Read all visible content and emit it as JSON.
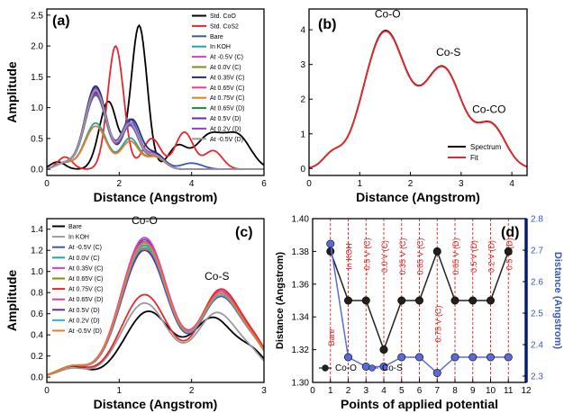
{
  "colors": {
    "black": "#000000",
    "red": "#e8262b",
    "blue": "#3a57b5",
    "teal": "#18a8a8",
    "magenta": "#d63fc8",
    "olive": "#8a8a10",
    "navy": "#1f2a8a",
    "pink": "#ee3a86",
    "orange": "#f07a20",
    "green": "#1a8f2a",
    "dkmagenta": "#6a2aa8",
    "purple": "#9a3ad0",
    "gray": "#9a9a9a",
    "cyan": "#27b6d6",
    "ptBlack": "#202020",
    "ptBlue": "#5a6ad8"
  },
  "chart_data": [
    {
      "id": "a",
      "panel_label": "(a)",
      "type": "line",
      "xlabel": "Distance (Angstrom)",
      "ylabel": "Amplitude",
      "xlim": [
        0,
        6
      ],
      "ylim": [
        -0.1,
        2.6
      ],
      "xticks": [
        0,
        2,
        4,
        6
      ],
      "yticks": [
        0.0,
        0.5,
        1.0,
        1.5,
        2.0,
        2.5
      ],
      "ytick_labels": [
        "0.0",
        "0.5",
        "1.0",
        "1.5",
        "2.0",
        "2.5"
      ],
      "legend_position": "top-right",
      "series": [
        {
          "name": "Std. CoO",
          "color": "#000000",
          "peaks": [
            [
              0.3,
              0.12,
              0.2
            ],
            [
              1.7,
              1.1,
              0.25
            ],
            [
              2.55,
              2.33,
              0.22
            ],
            [
              3.6,
              0.35,
              0.25
            ],
            [
              4.5,
              0.55,
              0.4
            ],
            [
              5.3,
              0.5,
              0.35
            ]
          ]
        },
        {
          "name": "Std. CoS2",
          "color": "#e8262b",
          "peaks": [
            [
              0.5,
              0.2,
              0.2
            ],
            [
              1.9,
              2.0,
              0.22
            ],
            [
              2.9,
              0.5,
              0.25
            ],
            [
              3.8,
              0.6,
              0.25
            ],
            [
              4.6,
              0.3,
              0.25
            ]
          ]
        },
        {
          "name": "Bare",
          "color": "#3a57b5",
          "peaks": [
            [
              0.5,
              0.1,
              0.25
            ],
            [
              1.35,
              1.32,
              0.3
            ],
            [
              2.3,
              0.8,
              0.25
            ],
            [
              3.0,
              0.25,
              0.25
            ],
            [
              4.0,
              0.1,
              0.3
            ]
          ]
        },
        {
          "name": "In KOH",
          "color": "#18a8a8",
          "peaks": [
            [
              0.5,
              0.1,
              0.25
            ],
            [
              1.35,
              0.75,
              0.3
            ],
            [
              2.3,
              0.5,
              0.25
            ],
            [
              3.0,
              0.2,
              0.25
            ]
          ]
        },
        {
          "name": "At -0.5V (C)",
          "color": "#d63fc8",
          "peaks": [
            [
              0.5,
              0.1,
              0.25
            ],
            [
              1.35,
              1.3,
              0.3
            ],
            [
              2.3,
              0.75,
              0.25
            ],
            [
              3.0,
              0.25,
              0.25
            ]
          ]
        },
        {
          "name": "At 0.0V (C)",
          "color": "#8a8a10",
          "peaks": [
            [
              0.5,
              0.1,
              0.25
            ],
            [
              1.35,
              1.25,
              0.3
            ],
            [
              2.3,
              0.7,
              0.25
            ],
            [
              3.0,
              0.2,
              0.25
            ]
          ]
        },
        {
          "name": "At 0.35V (C)",
          "color": "#1f2a8a",
          "peaks": [
            [
              0.5,
              0.1,
              0.25
            ],
            [
              1.35,
              1.35,
              0.3
            ],
            [
              2.35,
              0.8,
              0.25
            ],
            [
              3.0,
              0.25,
              0.25
            ]
          ]
        },
        {
          "name": "At 0.65V (C)",
          "color": "#ee3a86",
          "peaks": [
            [
              0.5,
              0.1,
              0.25
            ],
            [
              1.35,
              1.28,
              0.3
            ],
            [
              2.3,
              0.72,
              0.25
            ],
            [
              3.0,
              0.22,
              0.25
            ]
          ]
        },
        {
          "name": "At 0.75V (C)",
          "color": "#f07a20",
          "peaks": [
            [
              0.5,
              0.1,
              0.25
            ],
            [
              1.35,
              0.7,
              0.3
            ],
            [
              2.3,
              0.45,
              0.25
            ],
            [
              3.0,
              0.2,
              0.25
            ]
          ]
        },
        {
          "name": "At 0.65V (D)",
          "color": "#1a8f2a",
          "peaks": [
            [
              0.5,
              0.1,
              0.25
            ],
            [
              1.35,
              1.2,
              0.3
            ],
            [
              2.3,
              0.7,
              0.25
            ],
            [
              3.0,
              0.22,
              0.25
            ]
          ]
        },
        {
          "name": "At 0.5V (D)",
          "color": "#6a2aa8",
          "peaks": [
            [
              0.5,
              0.1,
              0.25
            ],
            [
              1.35,
              1.25,
              0.3
            ],
            [
              2.3,
              0.72,
              0.25
            ],
            [
              3.0,
              0.22,
              0.25
            ]
          ]
        },
        {
          "name": "At 0.2V (D)",
          "color": "#9a3ad0",
          "peaks": [
            [
              0.5,
              0.1,
              0.25
            ],
            [
              1.35,
              1.22,
              0.3
            ],
            [
              2.3,
              0.7,
              0.25
            ],
            [
              3.0,
              0.22,
              0.25
            ]
          ]
        },
        {
          "name": "At -0.5V (D)",
          "color": "#9a9a9a",
          "peaks": [
            [
              0.5,
              0.1,
              0.25
            ],
            [
              1.35,
              1.28,
              0.3
            ],
            [
              2.3,
              0.74,
              0.25
            ],
            [
              3.0,
              0.22,
              0.25
            ]
          ]
        }
      ]
    },
    {
      "id": "b",
      "panel_label": "(b)",
      "type": "line",
      "xlabel": "Distance (Angstrom)",
      "ylabel": "",
      "xlim": [
        0,
        4.3
      ],
      "ylim": [
        -0.2,
        4.6
      ],
      "xticks": [
        0,
        1,
        2,
        3,
        4
      ],
      "yticks": [
        0,
        1,
        2,
        3,
        4
      ],
      "ytick_labels": [
        "0",
        "1",
        "2",
        "3",
        "4"
      ],
      "legend_position": "bottom-right",
      "annotations": [
        {
          "text": "Co-O",
          "x": 1.55,
          "y": 4.35
        },
        {
          "text": "Co-S",
          "x": 2.75,
          "y": 3.25
        },
        {
          "text": "Co-CO",
          "x": 3.55,
          "y": 1.6
        }
      ],
      "series": [
        {
          "name": "Spectrum",
          "color": "#000000",
          "peaks": [
            [
              0.45,
              0.35,
              0.18
            ],
            [
              1.5,
              3.95,
              0.42
            ],
            [
              2.65,
              2.85,
              0.38
            ],
            [
              3.6,
              1.2,
              0.28
            ]
          ]
        },
        {
          "name": "Fit",
          "color": "#e8262b",
          "peaks": [
            [
              0.45,
              0.35,
              0.18
            ],
            [
              1.5,
              3.93,
              0.42
            ],
            [
              2.65,
              2.84,
              0.38
            ],
            [
              3.6,
              1.19,
              0.28
            ]
          ]
        }
      ]
    },
    {
      "id": "c",
      "panel_label": "(c)",
      "type": "line",
      "xlabel": "Distance (Angstrom)",
      "ylabel": "Amplitude",
      "xlim": [
        0,
        3
      ],
      "ylim": [
        -0.05,
        1.5
      ],
      "xticks": [
        0,
        1,
        2,
        3
      ],
      "yticks": [
        0.0,
        0.2,
        0.4,
        0.6,
        0.8,
        1.0,
        1.2,
        1.4
      ],
      "ytick_labels": [
        "0.0",
        "0.2",
        "0.4",
        "0.6",
        "0.8",
        "1.0",
        "1.2",
        "1.4"
      ],
      "legend_position": "top-left",
      "annotations": [
        {
          "text": "Co-O",
          "x": 1.35,
          "y": 1.45
        },
        {
          "text": "Co-S",
          "x": 2.35,
          "y": 0.92
        }
      ],
      "series": [
        {
          "name": "Bare",
          "color": "#000000",
          "peaks": [
            [
              0.35,
              0.1,
              0.2
            ],
            [
              1.4,
              0.62,
              0.32
            ],
            [
              2.3,
              0.55,
              0.28
            ],
            [
              2.85,
              0.2,
              0.2
            ]
          ]
        },
        {
          "name": "In KOH",
          "color": "#9a9a9a",
          "peaks": [
            [
              0.35,
              0.08,
              0.2
            ],
            [
              1.35,
              0.7,
              0.32
            ],
            [
              2.35,
              0.6,
              0.28
            ],
            [
              2.85,
              0.15,
              0.2
            ]
          ]
        },
        {
          "name": "At -0.5V (C)",
          "color": "#3a57b5",
          "peaks": [
            [
              0.35,
              0.1,
              0.2
            ],
            [
              1.35,
              1.3,
              0.32
            ],
            [
              2.4,
              0.8,
              0.28
            ],
            [
              2.9,
              0.2,
              0.2
            ]
          ]
        },
        {
          "name": "At 0.0V (C)",
          "color": "#18a8a8",
          "peaks": [
            [
              0.35,
              0.1,
              0.2
            ],
            [
              1.35,
              1.25,
              0.32
            ],
            [
              2.4,
              0.78,
              0.28
            ],
            [
              2.9,
              0.2,
              0.2
            ]
          ]
        },
        {
          "name": "At 0.35V (C)",
          "color": "#d63fc8",
          "peaks": [
            [
              0.35,
              0.1,
              0.2
            ],
            [
              1.35,
              1.32,
              0.32
            ],
            [
              2.4,
              0.8,
              0.28
            ],
            [
              2.9,
              0.2,
              0.2
            ]
          ]
        },
        {
          "name": "At 0.65V (C)",
          "color": "#8a8a10",
          "peaks": [
            [
              0.35,
              0.1,
              0.2
            ],
            [
              1.35,
              1.22,
              0.32
            ],
            [
              2.4,
              0.76,
              0.28
            ],
            [
              2.9,
              0.2,
              0.2
            ]
          ]
        },
        {
          "name": "At 0.75V (C)",
          "color": "#e8262b",
          "peaks": [
            [
              0.35,
              0.1,
              0.2
            ],
            [
              1.35,
              0.78,
              0.32
            ],
            [
              2.4,
              0.82,
              0.28
            ],
            [
              2.9,
              0.22,
              0.2
            ]
          ]
        },
        {
          "name": "At 0.65V (D)",
          "color": "#ee3a86",
          "peaks": [
            [
              0.35,
              0.1,
              0.2
            ],
            [
              1.35,
              1.28,
              0.32
            ],
            [
              2.4,
              0.78,
              0.28
            ],
            [
              2.9,
              0.2,
              0.2
            ]
          ]
        },
        {
          "name": "At 0.5V (D)",
          "color": "#6a2aa8",
          "peaks": [
            [
              0.35,
              0.1,
              0.2
            ],
            [
              1.35,
              1.2,
              0.32
            ],
            [
              2.4,
              0.75,
              0.28
            ],
            [
              2.9,
              0.2,
              0.2
            ]
          ]
        },
        {
          "name": "At 0.2V (D)",
          "color": "#27b6d6",
          "peaks": [
            [
              0.35,
              0.1,
              0.2
            ],
            [
              1.35,
              1.24,
              0.32
            ],
            [
              2.4,
              0.76,
              0.28
            ],
            [
              2.9,
              0.2,
              0.2
            ]
          ]
        },
        {
          "name": "At -0.5V (D)",
          "color": "#f07a20",
          "peaks": [
            [
              0.35,
              0.1,
              0.2
            ],
            [
              1.35,
              1.27,
              0.32
            ],
            [
              2.4,
              0.78,
              0.28
            ],
            [
              2.9,
              0.2,
              0.2
            ]
          ]
        }
      ]
    },
    {
      "id": "d",
      "panel_label": "(d)",
      "type": "line",
      "xlabel": "Points of applied potential",
      "ylabel": "Distance (Angstrom)",
      "ylabel_right": "Distance (Angstrom)",
      "xlim": [
        0,
        12
      ],
      "ylim": [
        1.3,
        1.4
      ],
      "ylim_right": [
        2.28,
        2.8
      ],
      "xticks": [
        0,
        1,
        2,
        3,
        4,
        5,
        6,
        7,
        8,
        9,
        10,
        11,
        12
      ],
      "yticks": [
        1.3,
        1.32,
        1.34,
        1.36,
        1.38,
        1.4
      ],
      "ytick_labels": [
        "1.30",
        "1.32",
        "1.34",
        "1.36",
        "1.38",
        "1.40"
      ],
      "yticks_right": [
        2.3,
        2.4,
        2.5,
        2.6,
        2.7,
        2.8
      ],
      "ytick_labels_right": [
        "2.3",
        "2.4",
        "2.5",
        "2.6",
        "2.7",
        "2.8"
      ],
      "legend_position": "bottom-left",
      "point_labels": [
        "Bare",
        "In KOH",
        "- 0.5 V (C)",
        "0.0 V (C)",
        "0.35 V (C)",
        "0.65 V (C)",
        "0.75 V (C)",
        "0.65 V (D)",
        "0.5 V (D)",
        "0.2 V (D)",
        "- 0.5 V (D)"
      ],
      "series": [
        {
          "name": "Co-O",
          "axis": "left",
          "color": "#202020",
          "x": [
            1,
            2,
            3,
            4,
            5,
            6,
            7,
            8,
            9,
            10,
            11
          ],
          "y": [
            1.38,
            1.35,
            1.35,
            1.32,
            1.35,
            1.35,
            1.38,
            1.35,
            1.35,
            1.35,
            1.38
          ]
        },
        {
          "name": "Co-S",
          "axis": "right",
          "color": "#5a6ad8",
          "x": [
            1,
            2,
            3,
            4,
            5,
            6,
            7,
            8,
            9,
            10,
            11
          ],
          "y": [
            2.72,
            2.36,
            2.33,
            2.33,
            2.36,
            2.36,
            2.31,
            2.36,
            2.36,
            2.36,
            2.36
          ]
        }
      ]
    }
  ]
}
